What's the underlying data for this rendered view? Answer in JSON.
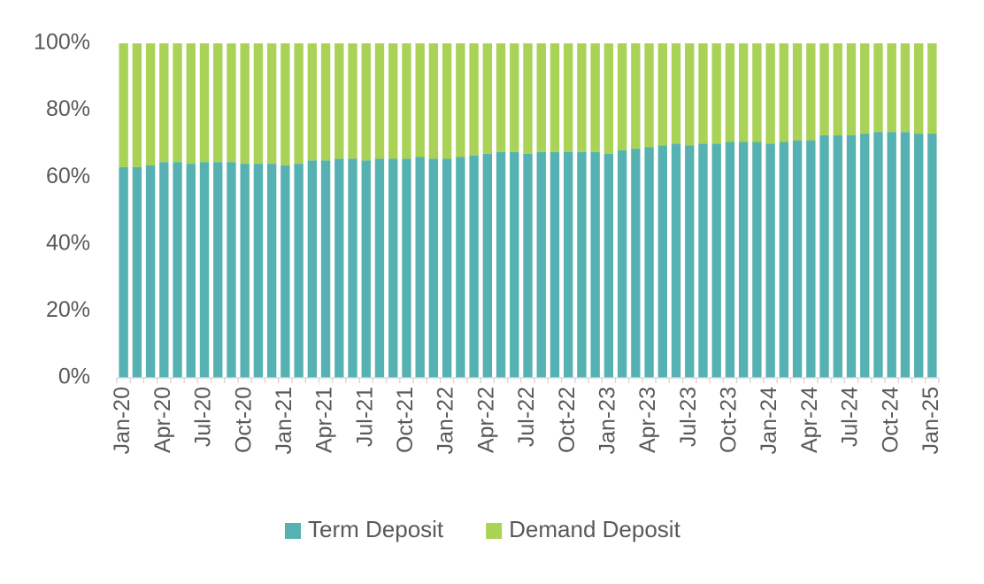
{
  "chart_data": {
    "type": "stacked_bar",
    "categories": [
      "Jan-20",
      null,
      null,
      "Apr-20",
      null,
      null,
      "Jul-20",
      null,
      null,
      "Oct-20",
      null,
      null,
      "Jan-21",
      null,
      null,
      "Apr-21",
      null,
      null,
      "Jul-21",
      null,
      null,
      "Oct-21",
      null,
      null,
      "Jan-22",
      null,
      null,
      "Apr-22",
      null,
      null,
      "Jul-22",
      null,
      null,
      "Oct-22",
      null,
      null,
      "Jan-23",
      null,
      null,
      "Apr-23",
      null,
      null,
      "Jul-23",
      null,
      null,
      "Oct-23",
      null,
      null,
      "Jan-24",
      null,
      null,
      "Apr-24",
      null,
      null,
      "Jul-24",
      null,
      null,
      "Oct-24",
      null,
      null,
      "Jan-25"
    ],
    "series": [
      {
        "name": "Term Deposit",
        "color": "#55b1b2",
        "values": [
          63,
          63,
          63.5,
          64.5,
          64.5,
          64,
          64.5,
          64.5,
          64.5,
          64,
          64,
          64,
          63.5,
          64,
          65,
          65,
          65.5,
          65.5,
          65,
          65.5,
          65.5,
          65.5,
          66,
          65.5,
          65.5,
          66,
          66.5,
          67,
          67.5,
          67.5,
          67,
          67.5,
          67.5,
          67.5,
          67.5,
          67.5,
          67,
          68,
          68.5,
          69,
          69.5,
          70,
          69.5,
          70,
          70,
          70.5,
          70.5,
          70.5,
          70,
          70.5,
          71,
          71,
          72.5,
          72.5,
          72.5,
          73,
          73.5,
          73.5,
          73.5,
          73,
          73
        ]
      },
      {
        "name": "Demand Deposit",
        "color": "#a9d256",
        "values": [
          37,
          37,
          36.5,
          35.5,
          35.5,
          36,
          35.5,
          35.5,
          35.5,
          36,
          36,
          36,
          36.5,
          36,
          35,
          35,
          34.5,
          34.5,
          35,
          34.5,
          34.5,
          34.5,
          34,
          34.5,
          34.5,
          34,
          33.5,
          33,
          32.5,
          32.5,
          33,
          32.5,
          32.5,
          32.5,
          32.5,
          32.5,
          33,
          32,
          31.5,
          31,
          30.5,
          30,
          30.5,
          30,
          30,
          29.5,
          29.5,
          29.5,
          30,
          29.5,
          29,
          29,
          27.5,
          27.5,
          27.5,
          27,
          26.5,
          26.5,
          26.5,
          27,
          27
        ]
      }
    ],
    "ylim": [
      0,
      100
    ],
    "yticks": [
      {
        "value": 0,
        "label": "0%"
      },
      {
        "value": 20,
        "label": "20%"
      },
      {
        "value": 40,
        "label": "40%"
      },
      {
        "value": 60,
        "label": "60%"
      },
      {
        "value": 80,
        "label": "80%"
      },
      {
        "value": 100,
        "label": "100%"
      }
    ],
    "grid": false,
    "legend": "bottom"
  }
}
